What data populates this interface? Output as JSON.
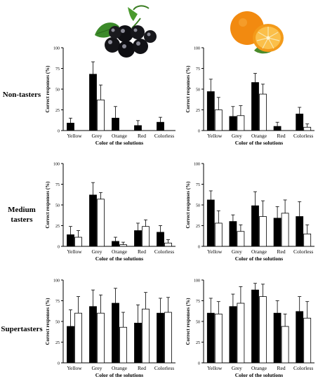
{
  "row_labels": [
    {
      "lines": [
        "Non-tasters"
      ]
    },
    {
      "lines": [
        "Medium",
        "tasters"
      ]
    },
    {
      "lines": [
        "Supertasters"
      ]
    }
  ],
  "images": [
    {
      "icon": "blackcurrant-icon"
    },
    {
      "icon": "orange-icon"
    }
  ],
  "colors": {
    "bar_a": "#000000",
    "bar_b": "#ffffff",
    "axis": "#000000"
  },
  "chart_data": [
    {
      "type": "bar",
      "panel": "non-tasters-blackcurrant",
      "xlabel": "Color of the solutions",
      "ylabel": "Correct responses (%)",
      "categories": [
        "Yellow",
        "Grey",
        "Orange",
        "Red",
        "Colorless"
      ],
      "ylim": [
        0,
        100
      ],
      "yticks": [
        0,
        25,
        50,
        75,
        100
      ],
      "series": [
        {
          "values": [
            9,
            68,
            15,
            6,
            10
          ],
          "errors": [
            6,
            15,
            14,
            6,
            6
          ]
        },
        {
          "values": [
            0,
            37,
            0,
            0,
            0
          ],
          "errors": [
            0,
            18,
            0,
            0,
            0
          ]
        }
      ]
    },
    {
      "type": "bar",
      "panel": "non-tasters-orange",
      "xlabel": "Color of the solutions",
      "ylabel": "Correct responses (%)",
      "categories": [
        "Yellow",
        "Grey",
        "Orange",
        "Red",
        "Colorless"
      ],
      "ylim": [
        0,
        100
      ],
      "yticks": [
        0,
        25,
        50,
        75,
        100
      ],
      "series": [
        {
          "values": [
            47,
            17,
            58,
            5,
            20
          ],
          "errors": [
            15,
            12,
            11,
            5,
            8
          ]
        },
        {
          "values": [
            25,
            18,
            44,
            0,
            4
          ],
          "errors": [
            15,
            12,
            12,
            0,
            4
          ]
        }
      ]
    },
    {
      "type": "bar",
      "panel": "medium-tasters-blackcurrant",
      "xlabel": "Color of the solutions",
      "ylabel": "Correct responses (%)",
      "categories": [
        "Yellow",
        "Grey",
        "Orange",
        "Red",
        "Colorless"
      ],
      "ylim": [
        0,
        100
      ],
      "yticks": [
        0,
        25,
        50,
        75,
        100
      ],
      "series": [
        {
          "values": [
            14,
            62,
            6,
            19,
            17
          ],
          "errors": [
            10,
            15,
            5,
            9,
            8
          ]
        },
        {
          "values": [
            11,
            57,
            2,
            24,
            4
          ],
          "errors": [
            8,
            8,
            3,
            8,
            4
          ]
        }
      ]
    },
    {
      "type": "bar",
      "panel": "medium-tasters-orange",
      "xlabel": "Color of the solutions",
      "ylabel": "Correct responses (%)",
      "categories": [
        "Yellow",
        "Grey",
        "Orange",
        "Red",
        "Colorless"
      ],
      "ylim": [
        0,
        100
      ],
      "yticks": [
        0,
        25,
        50,
        75,
        100
      ],
      "series": [
        {
          "values": [
            56,
            30,
            49,
            34,
            36
          ],
          "errors": [
            11,
            8,
            17,
            14,
            18
          ]
        },
        {
          "values": [
            28,
            18,
            36,
            40,
            15
          ],
          "errors": [
            15,
            8,
            19,
            16,
            11
          ]
        }
      ]
    },
    {
      "type": "bar",
      "panel": "supertasters-blackcurrant",
      "xlabel": "Color of the solutions",
      "ylabel": "Correct responses (%)",
      "categories": [
        "Yellow",
        "Grey",
        "Orange",
        "Red",
        "Colorless"
      ],
      "ylim": [
        0,
        100
      ],
      "yticks": [
        0,
        25,
        50,
        75,
        100
      ],
      "series": [
        {
          "values": [
            44,
            68,
            72,
            48,
            60
          ],
          "errors": [
            20,
            20,
            18,
            22,
            18
          ]
        },
        {
          "values": [
            60,
            60,
            43,
            65,
            61
          ],
          "errors": [
            20,
            22,
            18,
            20,
            18
          ]
        }
      ]
    },
    {
      "type": "bar",
      "panel": "supertasters-orange",
      "xlabel": "Color of the solutions",
      "ylabel": "Correct responses (%)",
      "categories": [
        "Yellow",
        "Grey",
        "Orange",
        "Red",
        "Colorless"
      ],
      "ylim": [
        0,
        100
      ],
      "yticks": [
        0,
        25,
        50,
        75,
        100
      ],
      "series": [
        {
          "values": [
            60,
            68,
            88,
            60,
            62
          ],
          "errors": [
            18,
            15,
            8,
            15,
            18
          ]
        },
        {
          "values": [
            59,
            72,
            80,
            44,
            54
          ],
          "errors": [
            15,
            20,
            15,
            15,
            20
          ]
        }
      ]
    }
  ]
}
